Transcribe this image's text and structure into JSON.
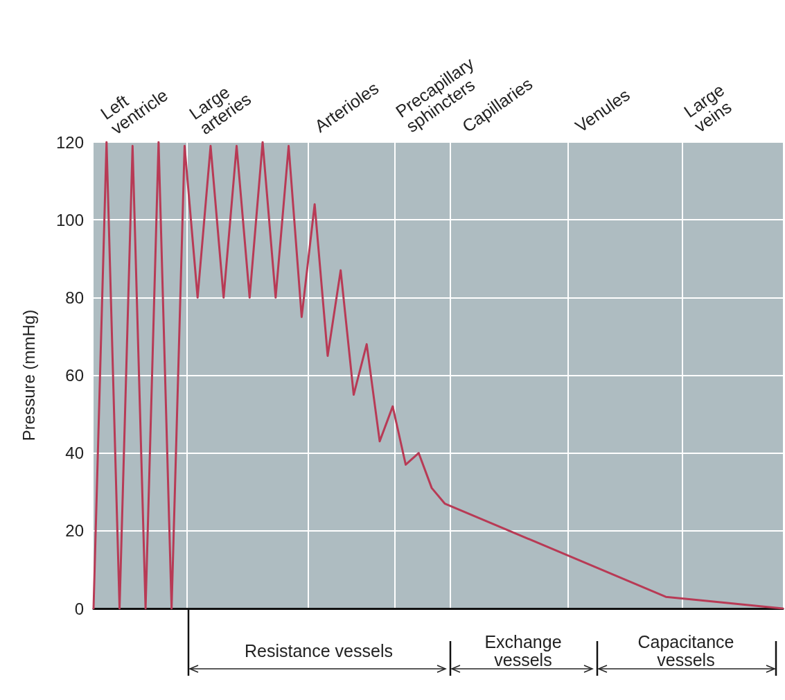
{
  "chart_data": {
    "type": "line",
    "ylabel": "Pressure (mmHg)",
    "categories": [
      null,
      null,
      null,
      null,
      null,
      null,
      null,
      null,
      null,
      null,
      null,
      null,
      null,
      null,
      null,
      null,
      null,
      null,
      null,
      null,
      null,
      null,
      null,
      null,
      null,
      null,
      null,
      null,
      null,
      null,
      null,
      null,
      null,
      null,
      null,
      null,
      null,
      null,
      null,
      null,
      null,
      null,
      null,
      null,
      null,
      null,
      null,
      null,
      null,
      null,
      null,
      null,
      null,
      null
    ],
    "series": [
      {
        "color": "#b83a55",
        "values": [
          0,
          120,
          0,
          119,
          0,
          120,
          0,
          119,
          80,
          119,
          80,
          119,
          80,
          120,
          80,
          119,
          75,
          104,
          65,
          87,
          55,
          68,
          43,
          52,
          37,
          40,
          31,
          27,
          null,
          null,
          null,
          null,
          null,
          null,
          null,
          null,
          null,
          null,
          null,
          null,
          null,
          null,
          null,
          null,
          3,
          null,
          null,
          2,
          null,
          null,
          null,
          null,
          null,
          0
        ]
      }
    ],
    "ylim": [
      0,
      120
    ],
    "yticks": [
      0,
      20,
      40,
      60,
      80,
      100,
      120
    ],
    "grid": "y",
    "marker": "none",
    "line_style": "solid",
    "annotations": [
      "Left ventricle",
      "Large arteries",
      "Arterioles",
      "Precapillary sphincters",
      "Capillaries",
      "Venules",
      "Large veins",
      "Resistance vessels",
      "Exchange vessels",
      "Capacitance vessels"
    ]
  }
}
